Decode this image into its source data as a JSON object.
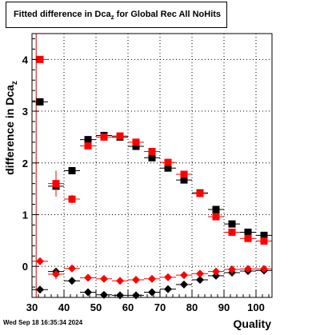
{
  "chart_data": {
    "type": "scatter",
    "title_main": "Fitted difference in Dca",
    "title_sub": "z",
    "title_rest": " for Global Rec All NoHits",
    "xlabel": "Quality",
    "ylabel": "difference in Dca",
    "ylabel_sub": "z",
    "xlim": [
      30,
      105
    ],
    "ylim": [
      -0.6,
      4.5
    ],
    "xticks": [
      30,
      40,
      50,
      60,
      70,
      80,
      90,
      100
    ],
    "yticks": [
      0,
      1,
      2,
      3,
      4
    ],
    "grid": true,
    "vline_x": 31.3,
    "vline_color": "#cc0000",
    "series": [
      {
        "marker": "square",
        "color": "#000000",
        "x": [
          32.5,
          37.5,
          42.5,
          47.5,
          52.5,
          57.5,
          62.5,
          67.5,
          72.5,
          77.5,
          82.5,
          87.5,
          92.5,
          97.5,
          102.5
        ],
        "y": [
          3.18,
          1.55,
          1.85,
          2.45,
          2.53,
          2.5,
          2.32,
          2.1,
          1.9,
          1.67,
          1.42,
          1.1,
          0.82,
          0.66,
          0.6
        ],
        "err": [
          0,
          0.1,
          0.04,
          0.03,
          0.03,
          0.03,
          0.03,
          0.03,
          0.03,
          0.03,
          0.03,
          0.03,
          0.03,
          0.03,
          0.03
        ]
      },
      {
        "marker": "square",
        "color": "#ff0000",
        "x": [
          32.5,
          37.5,
          42.5,
          47.5,
          52.5,
          57.5,
          62.5,
          67.5,
          72.5,
          77.5,
          82.5,
          87.5,
          92.5,
          97.5,
          102.5
        ],
        "y": [
          4.0,
          1.6,
          1.3,
          2.33,
          2.5,
          2.52,
          2.4,
          2.22,
          2.01,
          1.78,
          1.41,
          0.96,
          0.66,
          0.54,
          0.49
        ],
        "err": [
          0,
          0.25,
          0.08,
          0.04,
          0.03,
          0.03,
          0.03,
          0.03,
          0.03,
          0.03,
          0.03,
          0.03,
          0.03,
          0.03,
          0.03
        ]
      },
      {
        "marker": "diamond",
        "color": "#000000",
        "x": [
          32.5,
          37.5,
          42.5,
          47.5,
          52.5,
          57.5,
          62.5,
          67.5,
          72.5,
          77.5,
          82.5,
          87.5,
          92.5,
          97.5,
          102.5
        ],
        "y": [
          -0.45,
          -0.1,
          -0.28,
          -0.5,
          -0.55,
          -0.56,
          -0.56,
          -0.5,
          -0.44,
          -0.35,
          -0.26,
          -0.18,
          -0.12,
          -0.09,
          -0.08
        ],
        "err": [
          0,
          0.05,
          0.02,
          0.02,
          0.02,
          0.02,
          0.02,
          0.02,
          0.02,
          0.02,
          0.02,
          0.02,
          0.02,
          0.02,
          0.02
        ]
      },
      {
        "marker": "diamond",
        "color": "#ff0000",
        "x": [
          32.5,
          37.5,
          42.5,
          47.5,
          52.5,
          57.5,
          62.5,
          67.5,
          72.5,
          77.5,
          82.5,
          87.5,
          92.5,
          97.5,
          102.5
        ],
        "y": [
          0.1,
          -0.15,
          -0.04,
          -0.22,
          -0.24,
          -0.28,
          -0.26,
          -0.24,
          -0.21,
          -0.17,
          -0.14,
          -0.1,
          -0.06,
          -0.05,
          -0.05
        ],
        "err": [
          0,
          0.1,
          0.02,
          0.02,
          0.02,
          0.02,
          0.02,
          0.02,
          0.02,
          0.02,
          0.02,
          0.02,
          0.02,
          0.02,
          0.02
        ]
      }
    ]
  },
  "footer": {
    "timestamp": "Wed Sep 18 16:35:34 2024"
  }
}
